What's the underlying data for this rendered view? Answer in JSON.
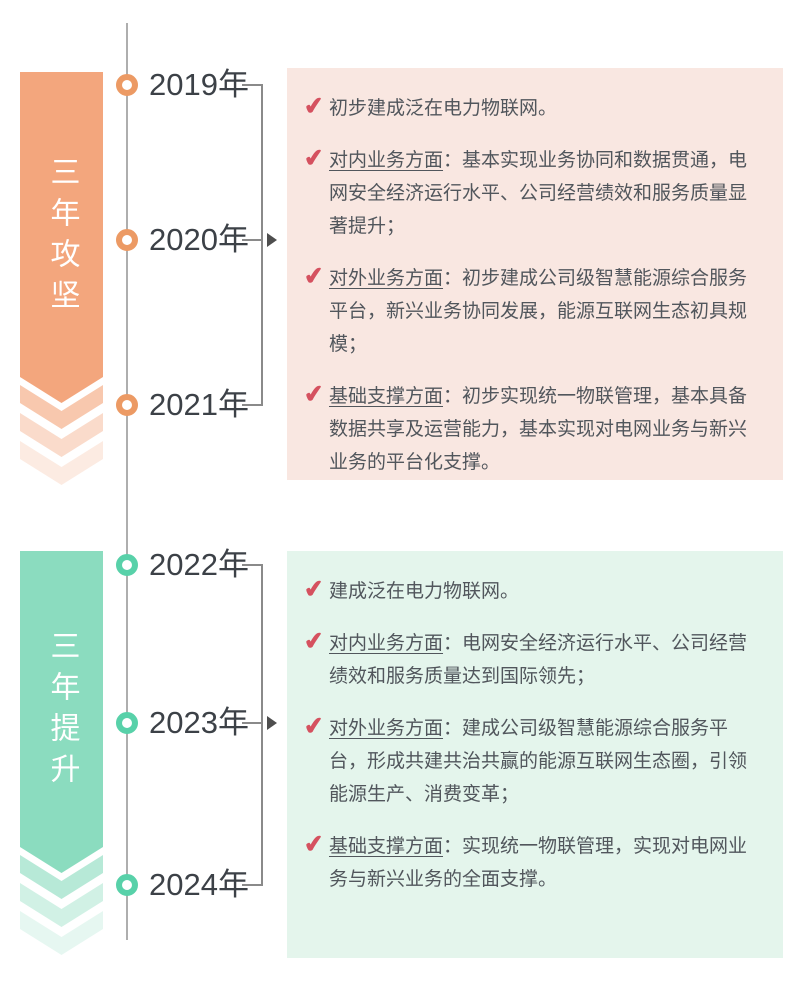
{
  "glyphs": {
    "check": "✔"
  },
  "colors": {
    "phase1_ribbon": "#f3a67d",
    "phase1_node": "#ec9a64",
    "phase1_panel": "#f9e7e1",
    "phase2_ribbon": "#8bdcbf",
    "phase2_node": "#58d1a9",
    "phase2_panel": "#e4f5ec",
    "check_red": "#d5515f",
    "text_gray": "#51565c"
  },
  "sections": [
    {
      "ribbon_label": "三年攻坚",
      "years": [
        "2019年",
        "2020年",
        "2021年"
      ],
      "bullets": [
        {
          "label": "",
          "text": "初步建成泛在电力物联网。"
        },
        {
          "label": "对内业务方面",
          "text": "：基本实现业务协同和数据贯通，电网安全经济运行水平、公司经营绩效和服务质量显著提升；"
        },
        {
          "label": "对外业务方面",
          "text": "：初步建成公司级智慧能源综合服务平台，新兴业务协同发展，能源互联网生态初具规模；"
        },
        {
          "label": "基础支撑方面",
          "text": "：初步实现统一物联管理，基本具备数据共享及运营能力，基本实现对电网业务与新兴业务的平台化支撑。"
        }
      ]
    },
    {
      "ribbon_label": "三年提升",
      "years": [
        "2022年",
        "2023年",
        "2024年"
      ],
      "bullets": [
        {
          "label": "",
          "text": "建成泛在电力物联网。"
        },
        {
          "label": "对内业务方面",
          "text": "：电网安全经济运行水平、公司经营绩效和服务质量达到国际领先；"
        },
        {
          "label": "对外业务方面",
          "text": "：建成公司级智慧能源综合服务平台，形成共建共治共赢的能源互联网生态圈，引领能源生产、消费变革；"
        },
        {
          "label": "基础支撑方面",
          "text": "：实现统一物联管理，实现对电网业务与新兴业务的全面支撑。"
        }
      ]
    }
  ]
}
